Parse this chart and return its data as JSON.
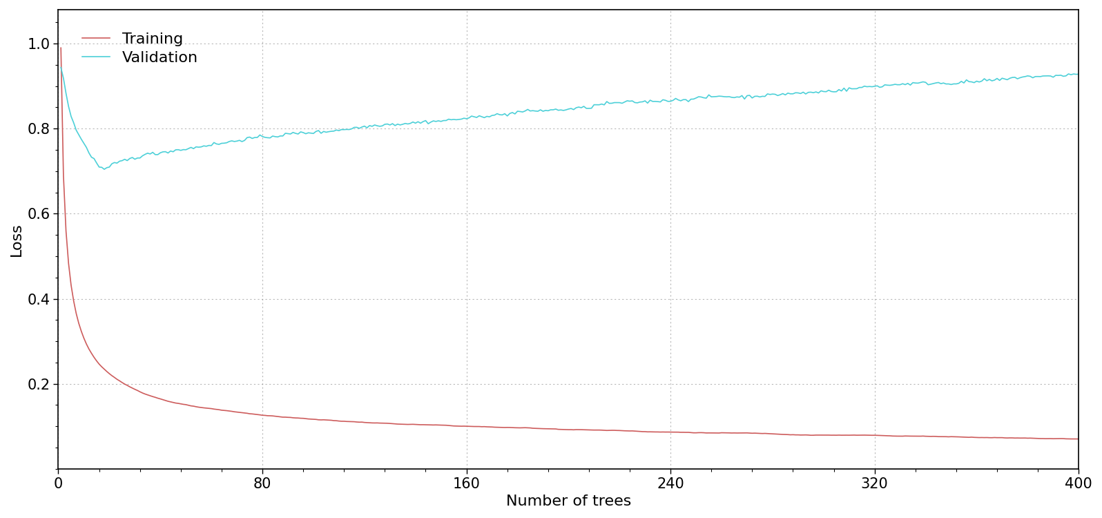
{
  "title": "",
  "xlabel": "Number of trees",
  "ylabel": "Loss",
  "xlim": [
    0,
    400
  ],
  "ylim": [
    0,
    1.08
  ],
  "yticks": [
    0.2,
    0.4,
    0.6,
    0.8,
    1.0
  ],
  "xticks": [
    0,
    80,
    160,
    240,
    320,
    400
  ],
  "training_color": "#cd5c5c",
  "validation_color": "#4dd0d8",
  "background_color": "#ffffff",
  "grid_color": "#999999",
  "n_trees": 400,
  "legend_labels": [
    "Training",
    "Validation"
  ],
  "axis_label_fontsize": 16,
  "tick_fontsize": 15,
  "legend_fontsize": 16
}
